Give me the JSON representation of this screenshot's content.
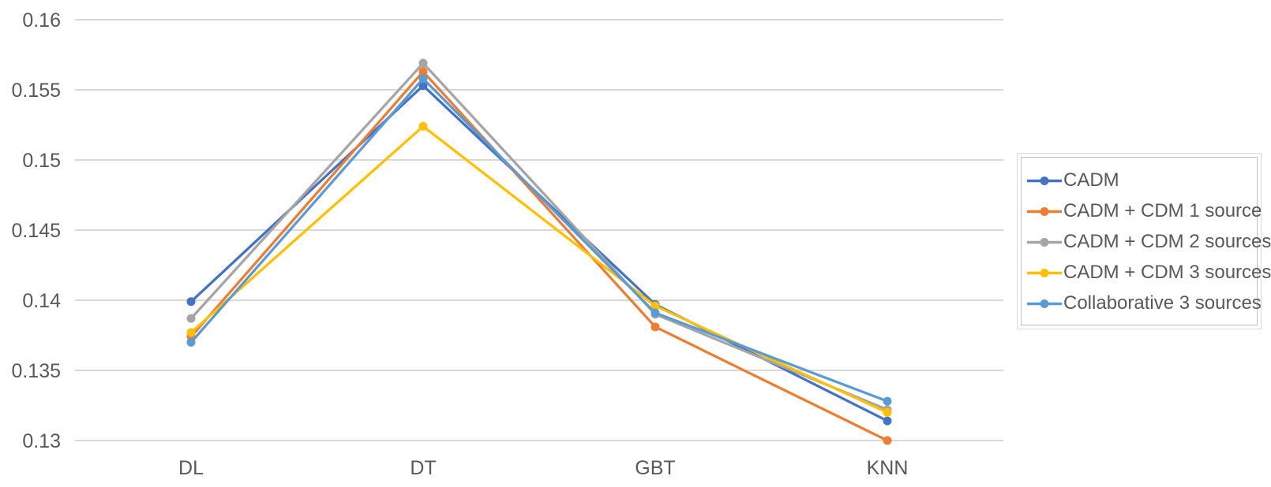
{
  "chart_data": {
    "type": "line",
    "title": "",
    "xlabel": "",
    "ylabel": "",
    "categories": [
      "DL",
      "DT",
      "GBT",
      "KNN"
    ],
    "series": [
      {
        "name": "CADM",
        "color": "#4472C4",
        "values": [
          0.1399,
          0.1553,
          0.1397,
          0.1314
        ]
      },
      {
        "name": "CADM + CDM 1 source",
        "color": "#ED7D31",
        "values": [
          0.1374,
          0.1563,
          0.1381,
          0.13
        ]
      },
      {
        "name": "CADM + CDM 2 sources",
        "color": "#A5A5A5",
        "values": [
          0.1387,
          0.1569,
          0.139,
          0.1322
        ]
      },
      {
        "name": "CADM + CDM 3 sources",
        "color": "#FFC000",
        "values": [
          0.1377,
          0.1524,
          0.1396,
          0.132
        ]
      },
      {
        "name": "Collaborative 3 sources",
        "color": "#5B9BD5",
        "values": [
          0.137,
          0.1558,
          0.1391,
          0.1328
        ]
      }
    ],
    "ylim": [
      0.13,
      0.16
    ],
    "ytick_labels": [
      "0.16",
      "0.155",
      "0.15",
      "0.145",
      "0.14",
      "0.135",
      "0.13"
    ],
    "grid": true,
    "legend_position": "right",
    "gridline_color": "#D9D9D9",
    "axis_text_color": "#595959",
    "legend_border_color": "#BFBFBF",
    "background_color": "#FFFFFF"
  }
}
